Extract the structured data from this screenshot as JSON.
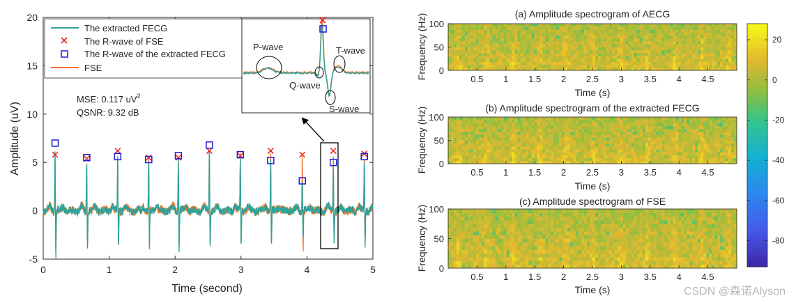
{
  "chart_data": [
    {
      "type": "line",
      "xlabel": "Time (second)",
      "ylabel": "Amplitude (uV)",
      "xlim": [
        0,
        5
      ],
      "ylim": [
        -5,
        20
      ],
      "xticks": [
        "0",
        "1",
        "2",
        "3",
        "4",
        "5"
      ],
      "yticks": [
        "-5",
        "0",
        "5",
        "10",
        "15",
        "20"
      ],
      "legend": {
        "position": "top-left",
        "entries": [
          {
            "label": "The extracted FECG",
            "color": "#2ca39a",
            "style": "line"
          },
          {
            "label": "The R-wave of FSE",
            "color": "#e8251f",
            "style": "x-marker"
          },
          {
            "label": "The R-wave of the extracted FECG",
            "color": "#1a1adb",
            "style": "square-marker"
          },
          {
            "label": "FSE",
            "color": "#f0742c",
            "style": "line"
          }
        ]
      },
      "annotations": {
        "mse_prefix": "MSE: 0.117 uV",
        "mse_sup": "2",
        "qsnr": "QSNR: 9.32 dB",
        "inset_labels": {
          "p": "P-wave",
          "q": "Q-wave",
          "s": "S-wave",
          "t": "T-wave"
        }
      },
      "r_peak_times": [
        0.18,
        0.66,
        1.13,
        1.6,
        2.05,
        2.52,
        2.99,
        3.45,
        3.93,
        4.4,
        4.87
      ],
      "fse_r_peaks": [
        5.8,
        5.4,
        6.2,
        5.5,
        5.5,
        6.2,
        5.7,
        6.2,
        5.8,
        6.2,
        5.9
      ],
      "fecg_r_peaks": [
        7.0,
        5.5,
        5.6,
        5.3,
        5.7,
        6.8,
        5.8,
        5.2,
        3.1,
        5.0,
        5.6
      ],
      "fecg_troughs": [
        -5.0,
        -4.2,
        -4.3,
        -4.3,
        -4.3,
        -4.2,
        -4.1,
        -4.2,
        -3.3,
        -3.5,
        -4.0
      ],
      "fse_troughs": [
        -4.4,
        -3.9,
        -4.1,
        -3.9,
        -3.8,
        -3.8,
        -3.9,
        -3.9,
        -4.3,
        -3.6,
        -3.7
      ]
    },
    {
      "type": "heatmap",
      "title": "(a) Amplitude spectrogram of AECG",
      "xlabel": "Time (s)",
      "ylabel": "Frequency (Hz)",
      "xlim": [
        0,
        5
      ],
      "ylim": [
        0,
        100
      ],
      "xticks": [
        "0.5",
        "1",
        "1.5",
        "2",
        "2.5",
        "3",
        "3.5",
        "4",
        "4.5"
      ],
      "yticks": [
        "0",
        "50",
        "100"
      ],
      "beat_times": [
        0.18,
        0.66,
        1.13,
        1.6,
        2.05,
        2.52,
        2.99,
        3.45,
        3.93,
        4.4,
        4.87
      ],
      "seed": 7
    },
    {
      "type": "heatmap",
      "title": "(b) Amplitude spectrogram of the extracted FECG",
      "xlabel": "Time (s)",
      "ylabel": "Frequency (Hz)",
      "xlim": [
        0,
        5
      ],
      "ylim": [
        0,
        100
      ],
      "xticks": [
        "0.5",
        "1",
        "1.5",
        "2",
        "2.5",
        "3",
        "3.5",
        "4",
        "4.5"
      ],
      "yticks": [
        "0",
        "50",
        "100"
      ],
      "beat_times": [
        0.18,
        0.66,
        1.13,
        1.6,
        2.05,
        2.52,
        2.99,
        3.45,
        3.93,
        4.4,
        4.87
      ],
      "seed": 19
    },
    {
      "type": "heatmap",
      "title": "(c) Amplitude spectrogram of FSE",
      "xlabel": "Time (s)",
      "ylabel": "Frequency (Hz)",
      "xlim": [
        0,
        5
      ],
      "ylim": [
        0,
        100
      ],
      "xticks": [
        "0.5",
        "1",
        "1.5",
        "2",
        "2.5",
        "3",
        "3.5",
        "4",
        "4.5"
      ],
      "yticks": [
        "0",
        "50",
        "100"
      ],
      "beat_times": [
        0.18,
        0.66,
        1.13,
        1.6,
        2.05,
        2.52,
        2.99,
        3.45,
        3.93,
        4.4,
        4.87
      ],
      "seed": 31
    }
  ],
  "colorbar": {
    "ticks": [
      "20",
      "0",
      "-20",
      "-40",
      "-60",
      "-80"
    ],
    "values": [
      20,
      0,
      -20,
      -40,
      -60,
      -80
    ],
    "range": [
      -93,
      28
    ]
  },
  "colors": {
    "fecg": "#2ca39a",
    "fse": "#f0742c",
    "fse_marker": "#e8251f",
    "fecg_marker": "#1a1adb"
  },
  "watermark": "CSDN @森诺Alyson"
}
